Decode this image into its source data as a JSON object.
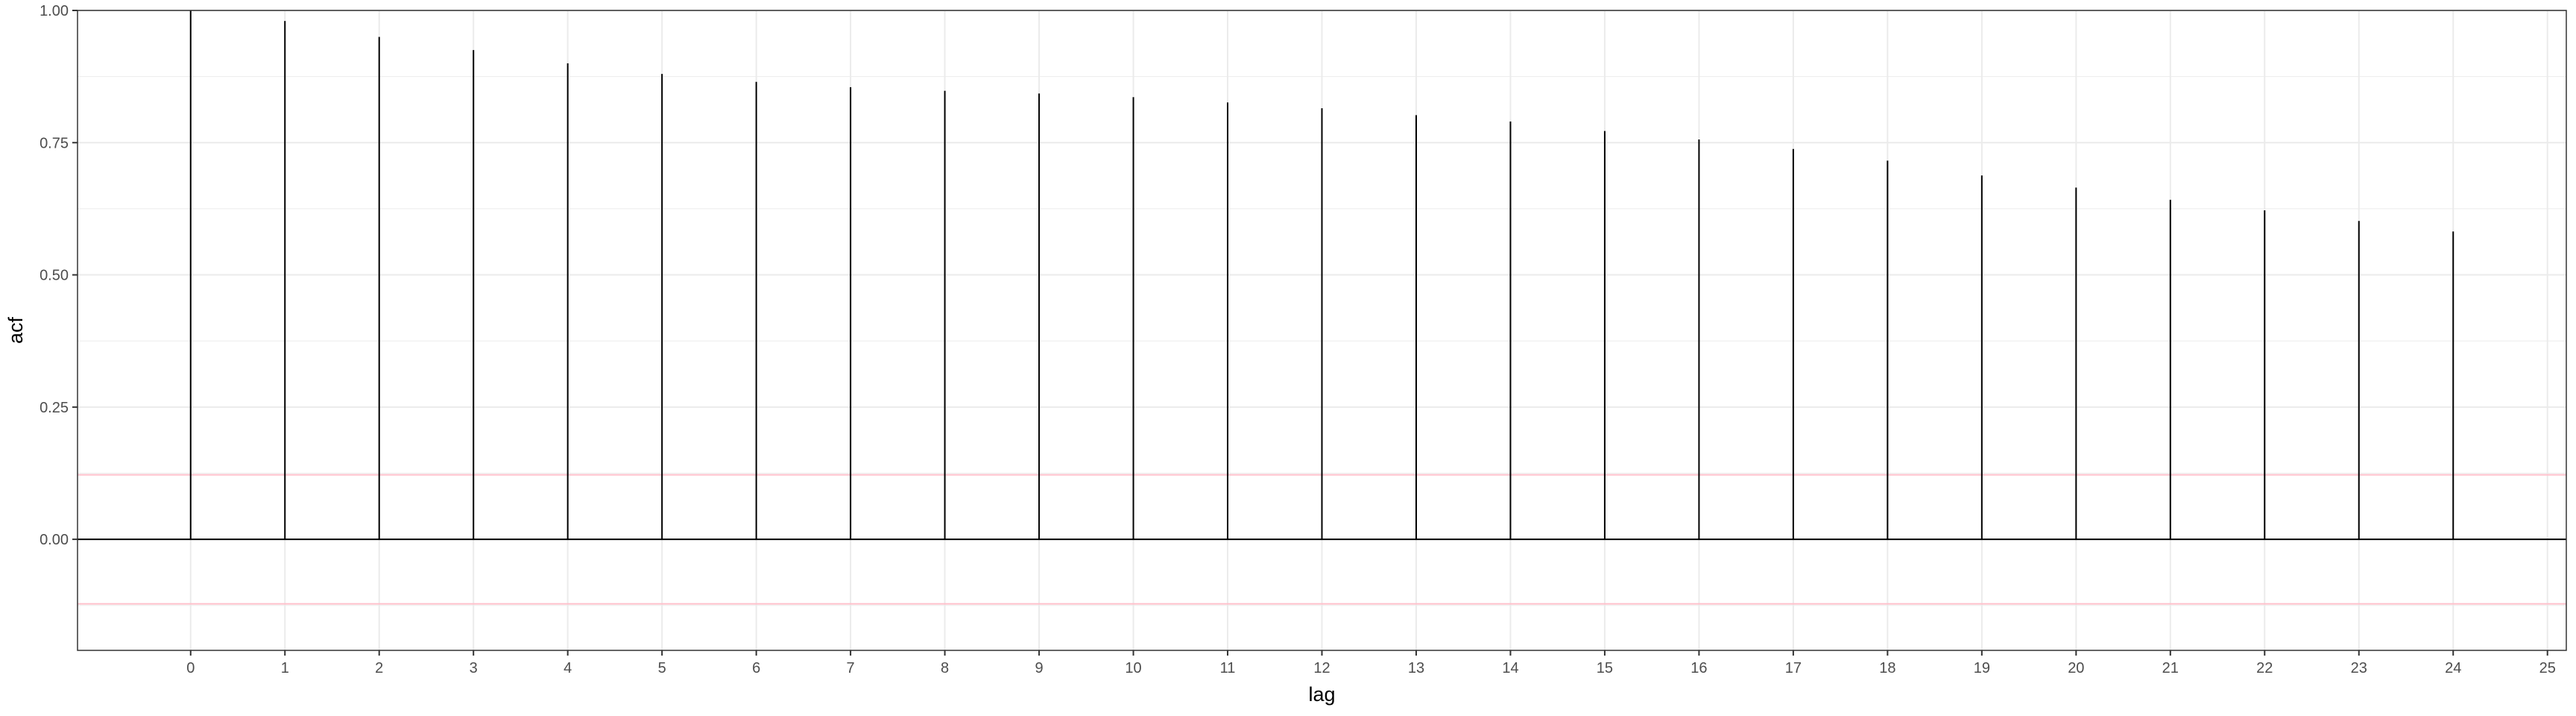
{
  "chart_data": {
    "type": "bar",
    "subtype": "acf-stem",
    "xlabel": "lag",
    "ylabel": "acf",
    "x": [
      0,
      1,
      2,
      3,
      4,
      5,
      6,
      7,
      8,
      9,
      10,
      11,
      12,
      13,
      14,
      15,
      16,
      17,
      18,
      19,
      20,
      21,
      22,
      23,
      24
    ],
    "values": [
      1.0,
      0.98,
      0.95,
      0.925,
      0.9,
      0.88,
      0.865,
      0.855,
      0.848,
      0.843,
      0.836,
      0.826,
      0.815,
      0.802,
      0.79,
      0.772,
      0.756,
      0.738,
      0.716,
      0.688,
      0.665,
      0.642,
      0.622,
      0.602,
      0.582
    ],
    "xlim": [
      -1.2,
      25.2
    ],
    "ylim": [
      -0.21,
      1.0
    ],
    "x_ticks": [
      "0",
      "1",
      "2",
      "3",
      "4",
      "5",
      "6",
      "7",
      "8",
      "9",
      "10",
      "11",
      "12",
      "13",
      "14",
      "15",
      "16",
      "17",
      "18",
      "19",
      "20",
      "21",
      "22",
      "23",
      "24",
      "25"
    ],
    "y_ticks": [
      "0.00",
      "0.25",
      "0.50",
      "0.75",
      "1.00"
    ],
    "confidence_bounds": [
      0.122,
      -0.122
    ],
    "grid": true,
    "colors": {
      "stem": "#000000",
      "zero_line": "#000000",
      "bound_line": "#ffc0cb",
      "grid": "#ebebeb",
      "panel_border": "#333333"
    }
  }
}
